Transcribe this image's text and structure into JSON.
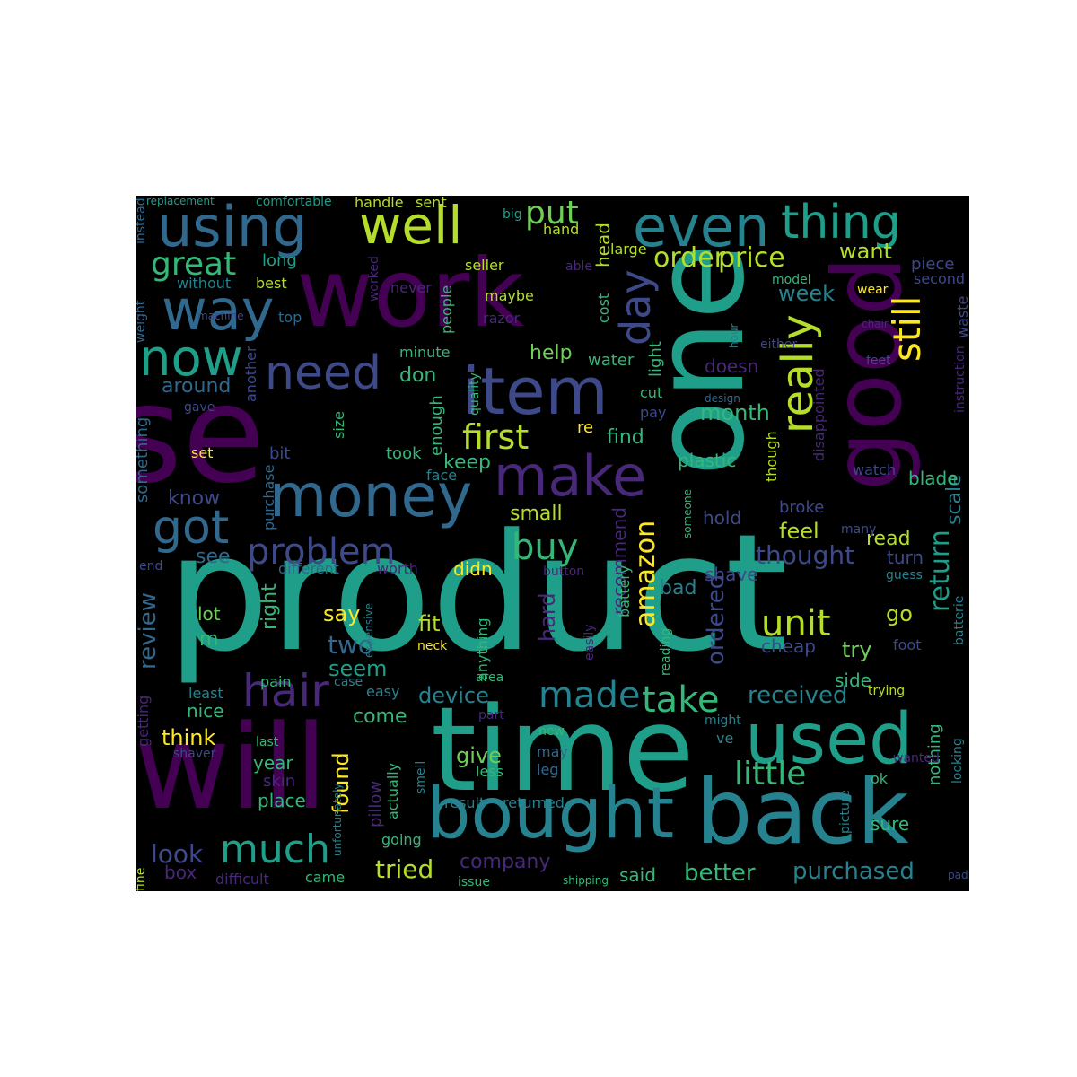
{
  "palette": {
    "d": "#440154",
    "p": "#482878",
    "i": "#3e4989",
    "b": "#31688e",
    "t": "#26828e",
    "c": "#1f9e89",
    "g": "#35b779",
    "l": "#6ece58",
    "m": "#b5de2b",
    "y": "#fde725"
  },
  "words": [
    [
      "product",
      "c",
      180,
      186,
      572,
      0
    ],
    [
      "use",
      "d",
      150,
      30,
      410,
      0
    ],
    [
      "time",
      "c",
      130,
      480,
      770,
      0
    ],
    [
      "one",
      "c",
      140,
      710,
      270,
      90
    ],
    [
      "will",
      "d",
      130,
      150,
      790,
      0
    ],
    [
      "work",
      "d",
      105,
      330,
      275,
      0
    ],
    [
      "good",
      "d",
      105,
      915,
      285,
      90
    ],
    [
      "bought",
      "t",
      78,
      475,
      868,
      0
    ],
    [
      "back",
      "t",
      100,
      775,
      855,
      0
    ],
    [
      "item",
      "i",
      72,
      515,
      400,
      0
    ],
    [
      "used",
      "c",
      78,
      830,
      785,
      0
    ],
    [
      "money",
      "b",
      66,
      300,
      520,
      0
    ],
    [
      "make",
      "p",
      62,
      550,
      500,
      0
    ],
    [
      "using",
      "b",
      62,
      175,
      222,
      0
    ],
    [
      "even",
      "t",
      62,
      705,
      222,
      0
    ],
    [
      "thing",
      "c",
      52,
      870,
      222,
      0
    ],
    [
      "well",
      "m",
      58,
      400,
      222,
      0
    ],
    [
      "way",
      "b",
      62,
      180,
      315,
      0
    ],
    [
      "now",
      "c",
      56,
      155,
      372,
      0
    ],
    [
      "need",
      "i",
      52,
      295,
      390,
      0
    ],
    [
      "really",
      "m",
      48,
      865,
      350,
      90
    ],
    [
      "day",
      "i",
      46,
      685,
      300,
      90
    ],
    [
      "still",
      "y",
      42,
      990,
      330,
      90
    ],
    [
      "got",
      "b",
      52,
      170,
      562,
      0
    ],
    [
      "problem",
      "i",
      40,
      275,
      595,
      0
    ],
    [
      "first",
      "m",
      38,
      515,
      468,
      0
    ],
    [
      "buy",
      "g",
      40,
      570,
      590,
      0
    ],
    [
      "hair",
      "p",
      50,
      270,
      745,
      0
    ],
    [
      "made",
      "t",
      40,
      600,
      755,
      0
    ],
    [
      "take",
      "g",
      40,
      715,
      760,
      0
    ],
    [
      "much",
      "c",
      44,
      245,
      925,
      0
    ],
    [
      "little",
      "g",
      36,
      818,
      845,
      0
    ],
    [
      "amazon",
      "y",
      30,
      705,
      580,
      90
    ],
    [
      "unit",
      "m",
      40,
      848,
      675,
      0
    ],
    [
      "return",
      "c",
      30,
      1033,
      590,
      90
    ],
    [
      "great",
      "g",
      36,
      168,
      277,
      0
    ],
    [
      "put",
      "l",
      36,
      585,
      220,
      0
    ],
    [
      "order",
      "m",
      30,
      728,
      273,
      0
    ],
    [
      "price",
      "m",
      30,
      800,
      273,
      0
    ],
    [
      "received",
      "t",
      26,
      833,
      762,
      0
    ],
    [
      "purchased",
      "t",
      26,
      883,
      958,
      0
    ],
    [
      "better",
      "g",
      26,
      762,
      960,
      0
    ],
    [
      "thought",
      "i",
      28,
      842,
      605,
      0
    ],
    [
      "look",
      "i",
      28,
      168,
      938,
      0
    ],
    [
      "company",
      "p",
      22,
      512,
      950,
      0
    ],
    [
      "tried",
      "m",
      28,
      418,
      955,
      0
    ],
    [
      "review",
      "b",
      26,
      152,
      660,
      90
    ],
    [
      "ordered",
      "i",
      26,
      785,
      640,
      90
    ],
    [
      "recommend",
      "p",
      20,
      680,
      565,
      90
    ],
    [
      "hard",
      "p",
      24,
      598,
      660,
      90
    ],
    [
      "device",
      "t",
      24,
      466,
      763,
      0
    ],
    [
      "month",
      "g",
      24,
      780,
      448,
      0
    ],
    [
      "week",
      "t",
      24,
      867,
      315,
      0
    ],
    [
      "around",
      "b",
      22,
      180,
      420,
      0
    ],
    [
      "know",
      "i",
      22,
      187,
      545,
      0
    ],
    [
      "see",
      "b",
      22,
      218,
      610,
      0
    ],
    [
      "small",
      "m",
      22,
      568,
      562,
      0
    ],
    [
      "keep",
      "g",
      22,
      494,
      505,
      0
    ],
    [
      "find",
      "g",
      22,
      676,
      477,
      0
    ],
    [
      "feel",
      "m",
      24,
      868,
      580,
      0
    ],
    [
      "read",
      "m",
      22,
      965,
      590,
      0
    ],
    [
      "say",
      "y",
      24,
      360,
      672,
      0
    ],
    [
      "two",
      "b",
      28,
      365,
      705,
      0
    ],
    [
      "seem",
      "c",
      24,
      366,
      733,
      0
    ],
    [
      "fit",
      "m",
      24,
      466,
      683,
      0
    ],
    [
      "come",
      "g",
      22,
      393,
      788,
      0
    ],
    [
      "found",
      "y",
      24,
      368,
      838,
      90
    ],
    [
      "give",
      "l",
      24,
      508,
      830,
      0
    ],
    [
      "year",
      "g",
      20,
      282,
      840,
      0
    ],
    [
      "place",
      "g",
      20,
      287,
      882,
      0
    ],
    [
      "think",
      "y",
      24,
      180,
      810,
      0
    ],
    [
      "nice",
      "g",
      20,
      208,
      782,
      0
    ],
    [
      "lot",
      "l",
      20,
      220,
      674,
      0
    ],
    [
      "m",
      "g",
      22,
      222,
      702,
      0
    ],
    [
      "right",
      "g",
      22,
      290,
      650,
      90
    ],
    [
      "try",
      "l",
      24,
      938,
      712,
      0
    ],
    [
      "go",
      "m",
      24,
      987,
      672,
      0
    ],
    [
      "side",
      "g",
      20,
      930,
      748,
      0
    ],
    [
      "cheap",
      "i",
      20,
      848,
      710,
      0
    ],
    [
      "hold",
      "i",
      20,
      783,
      567,
      0
    ],
    [
      "bad",
      "t",
      22,
      735,
      645,
      0
    ],
    [
      "shave",
      "i",
      20,
      785,
      630,
      0
    ],
    [
      "plastic",
      "g",
      20,
      755,
      503,
      0
    ],
    [
      "scale",
      "t",
      22,
      1053,
      528,
      90
    ],
    [
      "blade",
      "g",
      20,
      1012,
      523,
      0
    ],
    [
      "watch",
      "i",
      16,
      950,
      516,
      0
    ],
    [
      "want",
      "m",
      24,
      935,
      268,
      0
    ],
    [
      "piece",
      "i",
      18,
      1015,
      286,
      0
    ],
    [
      "second",
      "i",
      16,
      1018,
      303,
      0
    ],
    [
      "waste",
      "i",
      16,
      1065,
      330,
      90
    ],
    [
      "help",
      "l",
      22,
      590,
      383,
      0
    ],
    [
      "water",
      "g",
      18,
      655,
      393,
      0
    ],
    [
      "don",
      "g",
      22,
      445,
      408,
      0
    ],
    [
      "doesn",
      "p",
      20,
      785,
      398,
      0
    ],
    [
      "minute",
      "g",
      16,
      445,
      385,
      0
    ],
    [
      "people",
      "g",
      16,
      490,
      318,
      90
    ],
    [
      "razor",
      "p",
      16,
      538,
      347,
      0
    ],
    [
      "maybe",
      "m",
      16,
      540,
      322,
      0
    ],
    [
      "seller",
      "m",
      16,
      518,
      288,
      0
    ],
    [
      "cost",
      "g",
      16,
      665,
      327,
      90
    ],
    [
      "head",
      "m",
      20,
      662,
      248,
      90
    ],
    [
      "hand",
      "m",
      16,
      605,
      248,
      0
    ],
    [
      "handle",
      "m",
      16,
      395,
      218,
      0
    ],
    [
      "sent",
      "m",
      16,
      463,
      218,
      0
    ],
    [
      "large",
      "m",
      16,
      680,
      270,
      0
    ],
    [
      "comfortable",
      "c",
      14,
      285,
      218,
      0
    ],
    [
      "replacement",
      "c",
      12,
      163,
      218,
      0
    ],
    [
      "big",
      "c",
      14,
      560,
      232,
      0
    ],
    [
      "long",
      "c",
      18,
      292,
      282,
      0
    ],
    [
      "without",
      "t",
      16,
      197,
      308,
      0
    ],
    [
      "best",
      "m",
      16,
      285,
      308,
      0
    ],
    [
      "never",
      "p",
      16,
      435,
      313,
      0
    ],
    [
      "worked",
      "p",
      14,
      410,
      285,
      90
    ],
    [
      "able",
      "p",
      14,
      630,
      290,
      0
    ],
    [
      "model",
      "g",
      14,
      860,
      305,
      0
    ],
    [
      "wear",
      "y",
      14,
      955,
      316,
      0
    ],
    [
      "light",
      "g",
      18,
      722,
      380,
      90
    ],
    [
      "hour",
      "t",
      12,
      812,
      360,
      90
    ],
    [
      "either",
      "i",
      14,
      847,
      377,
      0
    ],
    [
      "chair",
      "p",
      12,
      960,
      355,
      0
    ],
    [
      "feet",
      "i",
      14,
      965,
      395,
      0
    ],
    [
      "instruction",
      "p",
      14,
      1063,
      385,
      90
    ],
    [
      "design",
      "b",
      12,
      785,
      438,
      0
    ],
    [
      "disappointed",
      "p",
      16,
      905,
      410,
      90
    ],
    [
      "though",
      "m",
      16,
      852,
      480,
      90
    ],
    [
      "someone",
      "g",
      12,
      760,
      545,
      90
    ],
    [
      "battery",
      "g",
      16,
      688,
      630,
      90
    ],
    [
      "broke",
      "i",
      18,
      868,
      557,
      0
    ],
    [
      "many",
      "i",
      14,
      937,
      583,
      0
    ],
    [
      "turn",
      "i",
      20,
      988,
      611,
      0
    ],
    [
      "guess",
      "t",
      14,
      987,
      634,
      0
    ],
    [
      "foot",
      "i",
      16,
      995,
      711,
      0
    ],
    [
      "batterie",
      "t",
      14,
      1062,
      664,
      90
    ],
    [
      "trying",
      "m",
      14,
      967,
      763,
      0
    ],
    [
      "might",
      "t",
      14,
      785,
      796,
      0
    ],
    [
      "ve",
      "t",
      16,
      798,
      815,
      0
    ],
    [
      "nothing",
      "g",
      18,
      1033,
      806,
      90
    ],
    [
      "looking",
      "t",
      14,
      1060,
      822,
      90
    ],
    [
      "wanted",
      "p",
      14,
      995,
      838,
      0
    ],
    [
      "ok",
      "g",
      16,
      970,
      860,
      0
    ],
    [
      "picture",
      "t",
      14,
      935,
      880,
      90
    ],
    [
      "sure",
      "g",
      20,
      970,
      908,
      0
    ],
    [
      "pad",
      "i",
      12,
      1056,
      969,
      0
    ],
    [
      "shipping",
      "g",
      12,
      627,
      975,
      0
    ],
    [
      "said",
      "g",
      20,
      690,
      965,
      0
    ],
    [
      "returned",
      "t",
      16,
      560,
      887,
      0
    ],
    [
      "result",
      "t",
      16,
      495,
      887,
      0
    ],
    [
      "pillow",
      "p",
      18,
      410,
      870,
      90
    ],
    [
      "actually",
      "g",
      16,
      430,
      850,
      90
    ],
    [
      "smell",
      "t",
      14,
      462,
      848,
      90
    ],
    [
      "may",
      "b",
      16,
      598,
      830,
      0
    ],
    [
      "leg",
      "b",
      16,
      598,
      850,
      0
    ],
    [
      "less",
      "g",
      16,
      530,
      852,
      0
    ],
    [
      "new",
      "g",
      14,
      600,
      808,
      0
    ],
    [
      "part",
      "p",
      14,
      533,
      790,
      0
    ],
    [
      "easy",
      "t",
      16,
      408,
      763,
      0
    ],
    [
      "area",
      "g",
      14,
      530,
      748,
      0
    ],
    [
      "neck",
      "y",
      14,
      465,
      713,
      0
    ],
    [
      "anything",
      "g",
      16,
      530,
      688,
      90
    ],
    [
      "easily",
      "p",
      14,
      650,
      695,
      90
    ],
    [
      "reading",
      "g",
      14,
      735,
      700,
      90
    ],
    [
      "expensive",
      "t",
      12,
      405,
      672,
      90
    ],
    [
      "worth",
      "p",
      16,
      420,
      626,
      0
    ],
    [
      "different",
      "b",
      16,
      310,
      626,
      0
    ],
    [
      "didn",
      "y",
      20,
      505,
      624,
      0
    ],
    [
      "button",
      "p",
      14,
      605,
      630,
      0
    ],
    [
      "end",
      "i",
      14,
      155,
      624,
      0
    ],
    [
      "pain",
      "g",
      16,
      290,
      752,
      0
    ],
    [
      "case",
      "t",
      14,
      372,
      753,
      0
    ],
    [
      "least",
      "t",
      16,
      210,
      765,
      0
    ],
    [
      "getting",
      "p",
      16,
      152,
      775,
      90
    ],
    [
      "shaver",
      "i",
      14,
      193,
      833,
      0
    ],
    [
      "last",
      "g",
      14,
      285,
      820,
      0
    ],
    [
      "unfortunately",
      "t",
      12,
      370,
      872,
      90
    ],
    [
      "skin",
      "p",
      18,
      293,
      862,
      0
    ],
    [
      "going",
      "g",
      16,
      425,
      928,
      0
    ],
    [
      "box",
      "p",
      20,
      183,
      962,
      0
    ],
    [
      "difficult",
      "p",
      16,
      240,
      972,
      0
    ],
    [
      "came",
      "g",
      16,
      340,
      970,
      0
    ],
    [
      "fine",
      "m",
      14,
      150,
      967,
      90
    ],
    [
      "issue",
      "g",
      14,
      510,
      976,
      0
    ],
    [
      "cut",
      "g",
      16,
      713,
      430,
      0
    ],
    [
      "pay",
      "i",
      16,
      713,
      452,
      0
    ],
    [
      "re",
      "y",
      18,
      643,
      468,
      0
    ],
    [
      "enough",
      "g",
      18,
      478,
      440,
      90
    ],
    [
      "quality",
      "g",
      14,
      522,
      415,
      90
    ],
    [
      "took",
      "g",
      18,
      430,
      497,
      0
    ],
    [
      "face",
      "t",
      16,
      475,
      522,
      0
    ],
    [
      "size",
      "g",
      16,
      370,
      458,
      90
    ],
    [
      "bit",
      "i",
      18,
      300,
      497,
      0
    ],
    [
      "purchase",
      "b",
      16,
      292,
      518,
      90
    ],
    [
      "another",
      "i",
      16,
      272,
      385,
      90
    ],
    [
      "something",
      "b",
      18,
      150,
      465,
      90
    ],
    [
      "gave",
      "i",
      14,
      205,
      447,
      0
    ],
    [
      "set",
      "y",
      16,
      213,
      497,
      0
    ],
    [
      "top",
      "b",
      16,
      310,
      346,
      0
    ],
    [
      "machine",
      "i",
      12,
      220,
      346,
      0
    ],
    [
      "weight",
      "b",
      14,
      150,
      335,
      90
    ],
    [
      "instead",
      "b",
      14,
      150,
      220,
      90
    ]
  ]
}
